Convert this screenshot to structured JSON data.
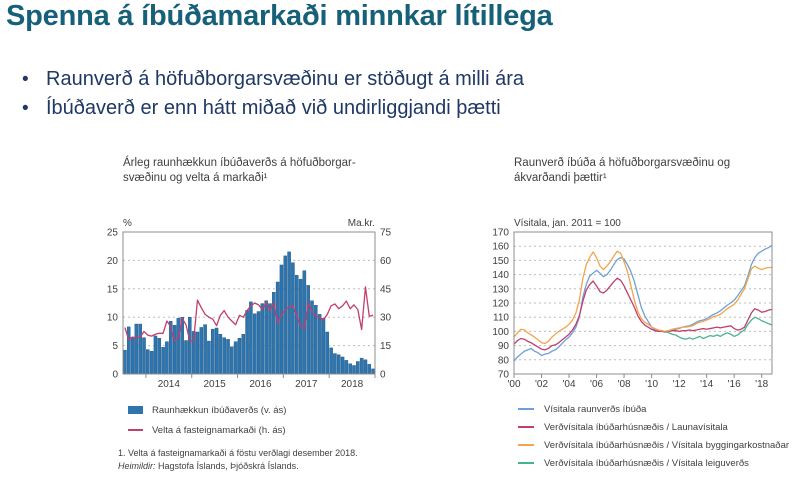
{
  "slide": {
    "title": "Spenna á íbúðamarkaði minnkar lítillega",
    "bullet_glyph": "•",
    "bullets": [
      "Raunverð á höfuðborgarsvæðinu er stöðugt á milli ára",
      "Íbúðaverð er enn hátt miðað við undirliggjandi þætti"
    ]
  },
  "colors": {
    "title": "#166079",
    "bullet_text": "#1f3864",
    "chart_text": "#3f3f3f",
    "grid": "#bdbdbd",
    "plot_border": "#8c8c8c",
    "bar_blue": "#2e74ad",
    "pink": "#c13e6e",
    "line_blue": "#6f9fd8",
    "orange": "#f2a54c",
    "green": "#47b388"
  },
  "footnotes": {
    "note": "1. Velta á fasteignamarkaði á föstu verðlagi desember 2018.",
    "source_label": "Heimildir:",
    "source_text": "Hagstofa Íslands, Þjóðskrá Íslands."
  },
  "chart_data": [
    {
      "type": "bar",
      "title_lines": [
        "Árleg raunhækkun íbúðaverðs á höfuðborgar-",
        "svæðinu og velta á markaði¹"
      ],
      "left_axis": {
        "unit": "%",
        "min": 0,
        "max": 25,
        "ticks": [
          0,
          5,
          10,
          15,
          20,
          25
        ]
      },
      "right_axis": {
        "unit": "Ma.kr.",
        "min": 0,
        "max": 75,
        "ticks": [
          0,
          15,
          30,
          45,
          60,
          75
        ]
      },
      "x_year_labels": [
        "2014",
        "2015",
        "2016",
        "2017",
        "2018"
      ],
      "months_before_first_year": 6,
      "grid": "dashed",
      "bars": {
        "name": "Raunhækkun íbúðaverðs (v. ás)",
        "color": "#2e74ad",
        "values": [
          4.2,
          8.3,
          6.5,
          8.8,
          8.8,
          6.4,
          4.3,
          4.0,
          6.7,
          6.3,
          4.7,
          5.7,
          9.3,
          8.6,
          9.8,
          10.0,
          5.9,
          10.0,
          7.5,
          7.4,
          8.2,
          8.7,
          5.8,
          7.9,
          8.1,
          7.0,
          6.4,
          6.1,
          4.8,
          5.7,
          6.3,
          7.0,
          11.2,
          12.7,
          10.6,
          11.0,
          12.4,
          12.9,
          12.4,
          14.4,
          16.2,
          19.2,
          20.8,
          21.5,
          19.6,
          17.4,
          16.7,
          18.2,
          15.6,
          12.9,
          12.1,
          10.5,
          9.8,
          7.4,
          4.6,
          3.6,
          3.4,
          3.0,
          2.4,
          1.8,
          1.5,
          2.2,
          2.8,
          2.5,
          1.7,
          0.9
        ]
      },
      "line": {
        "name": "Velta á fasteignamarkaði (h. ás)",
        "color": "#c13e6e",
        "values": [
          24.5,
          18,
          19.5,
          19,
          19.5,
          22.5,
          20.5,
          20,
          21,
          21.5,
          21.5,
          28,
          25,
          17.5,
          19,
          29.5,
          26,
          17.5,
          17.5,
          39,
          35,
          31.5,
          30,
          29,
          25.5,
          31,
          33.5,
          30,
          28,
          26,
          31,
          30,
          33.5,
          36,
          37.5,
          36.5,
          34,
          38,
          33.5,
          37.5,
          27,
          31.5,
          34,
          35.5,
          36,
          31,
          25.5,
          24,
          37.5,
          33,
          30.5,
          30,
          28.5,
          31.5,
          36,
          37,
          34.5,
          36,
          38.5,
          34.5,
          36.5,
          34,
          23.5,
          46,
          30.5,
          31
        ]
      },
      "legend": [
        {
          "label": "Raunhækkun íbúðaverðs (v. ás)",
          "marker": "bar",
          "color": "#2e74ad"
        },
        {
          "label": "Velta á fasteignamarkaði (h. ás)",
          "marker": "line",
          "color": "#c13e6e"
        }
      ]
    },
    {
      "type": "line",
      "title_lines": [
        "Raunverð íbúða á höfuðborgarsvæðinu og",
        "ákvarðandi þættir¹"
      ],
      "axis_title": "Vísitala, jan. 2011 = 100",
      "ylim": [
        70,
        170
      ],
      "y_ticks": [
        70,
        80,
        90,
        100,
        110,
        120,
        130,
        140,
        150,
        160,
        170
      ],
      "x_tick_labels": [
        "'00",
        "'02",
        "'04",
        "'06",
        "'08",
        "'10",
        "'12",
        "'14",
        "'16",
        "'18"
      ],
      "x_start_year": 2000,
      "points_per_year": 4,
      "grid": "dashed",
      "series": [
        {
          "name": "Vísitala raunverðs íbúða",
          "color": "#6f9fd8",
          "values": [
            79,
            82,
            84,
            86,
            87,
            88,
            86,
            85,
            83,
            84,
            84.5,
            86,
            87,
            89,
            91.5,
            94,
            96,
            99,
            103,
            110,
            124,
            133,
            139,
            141,
            143,
            141,
            138.5,
            140,
            143,
            147,
            150.5,
            152,
            151,
            147,
            142,
            135,
            126,
            117,
            111,
            107,
            103,
            101,
            100,
            100,
            100,
            100.5,
            101,
            101.5,
            102,
            103,
            103.5,
            104,
            105,
            106.5,
            107.5,
            108,
            109,
            110.5,
            112,
            113,
            114.5,
            116.5,
            118.5,
            120,
            122,
            125,
            128.5,
            132,
            139,
            147,
            152,
            155,
            156.5,
            158,
            159,
            160.5
          ]
        },
        {
          "name": "Verðvísitala íbúðarhúsnæðis / Launavísitala",
          "color": "#c13e6e",
          "values": [
            91,
            93.5,
            95,
            94.5,
            93,
            92,
            90.5,
            89,
            87.5,
            87,
            88,
            90,
            90.5,
            92,
            94,
            96,
            98,
            101,
            105,
            111,
            121,
            129,
            133,
            135.5,
            132,
            128,
            127,
            129,
            132,
            135,
            137.5,
            136,
            132,
            127,
            122,
            117,
            111,
            107,
            104.5,
            103,
            101.5,
            100.5,
            100,
            100,
            99.5,
            100,
            100.5,
            100.5,
            100,
            100.5,
            100.5,
            101,
            100.5,
            101,
            101.5,
            102,
            101.5,
            102,
            102.5,
            103,
            102.5,
            103,
            103.5,
            104,
            102,
            101,
            101.5,
            103,
            108,
            113,
            116,
            115,
            113.5,
            114,
            115,
            115.5
          ]
        },
        {
          "name": "Verðvísitala íbúðarhúsnæðis / Vísitala byggingarkostnaðar",
          "color": "#f2a54c",
          "values": [
            96,
            99,
            101.5,
            101,
            99,
            97.5,
            96,
            94,
            92,
            91.5,
            93,
            96,
            98,
            100,
            101.5,
            103,
            105,
            108,
            113,
            122,
            137,
            147,
            152,
            156,
            152,
            146,
            143.5,
            146,
            149,
            153,
            156.5,
            155,
            149,
            142,
            132,
            122,
            114,
            109,
            106.5,
            105,
            103,
            102,
            101,
            100.5,
            100,
            100.5,
            101.5,
            102,
            102.5,
            103,
            103,
            103.5,
            104,
            105.5,
            106.5,
            107,
            108,
            109,
            110.5,
            111,
            112,
            114,
            116,
            117.5,
            119,
            122,
            126,
            130,
            137,
            144,
            146,
            144.5,
            143.5,
            144.5,
            145,
            145
          ]
        },
        {
          "name": "Verðvísitala íbúðarhúsnæðis / Vísitala leiguverðs",
          "color": "#47b388",
          "values": [
            null,
            null,
            null,
            null,
            null,
            null,
            null,
            null,
            null,
            null,
            null,
            null,
            null,
            null,
            null,
            null,
            null,
            null,
            null,
            null,
            null,
            null,
            null,
            null,
            null,
            null,
            null,
            null,
            null,
            null,
            null,
            null,
            null,
            null,
            null,
            null,
            null,
            null,
            null,
            null,
            null,
            null,
            null,
            null,
            100,
            99,
            98,
            97.5,
            96,
            95,
            94.5,
            95.5,
            94.5,
            95.5,
            96.5,
            95,
            96,
            97,
            96.5,
            97.5,
            96.5,
            98,
            99,
            98,
            96.5,
            97.5,
            99.5,
            101,
            105,
            108,
            110,
            109,
            107.5,
            106.5,
            105.5,
            104.5
          ]
        }
      ]
    }
  ]
}
